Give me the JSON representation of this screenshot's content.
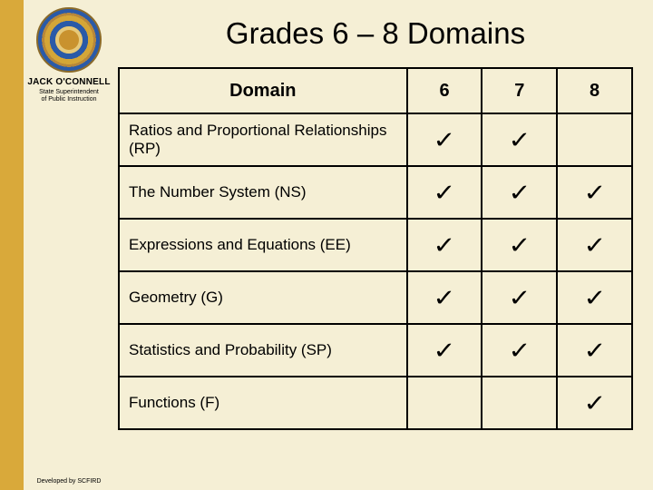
{
  "sidebar": {
    "name": "JACK O'CONNELL",
    "subtitle1": "State Superintendent",
    "subtitle2": "of Public Instruction",
    "footer": "Developed by SCFIRD"
  },
  "title": "Grades 6 – 8 Domains",
  "table": {
    "headers": {
      "domain": "Domain",
      "g6": "6",
      "g7": "7",
      "g8": "8"
    },
    "check_glyph": "✓",
    "rows": [
      {
        "domain": "Ratios and Proportional Relationships (RP)",
        "g6": true,
        "g7": true,
        "g8": false
      },
      {
        "domain": "The Number System (NS)",
        "g6": true,
        "g7": true,
        "g8": true
      },
      {
        "domain": "Expressions and Equations (EE)",
        "g6": true,
        "g7": true,
        "g8": true
      },
      {
        "domain": "Geometry (G)",
        "g6": true,
        "g7": true,
        "g8": true
      },
      {
        "domain": "Statistics and Probability (SP)",
        "g6": true,
        "g7": true,
        "g8": true
      },
      {
        "domain": "Functions (F)",
        "g6": false,
        "g7": false,
        "g8": true
      }
    ]
  },
  "colors": {
    "gold_stripe": "#d9a93a",
    "cream": "#f5efd5",
    "border": "#000000",
    "text": "#000000"
  }
}
